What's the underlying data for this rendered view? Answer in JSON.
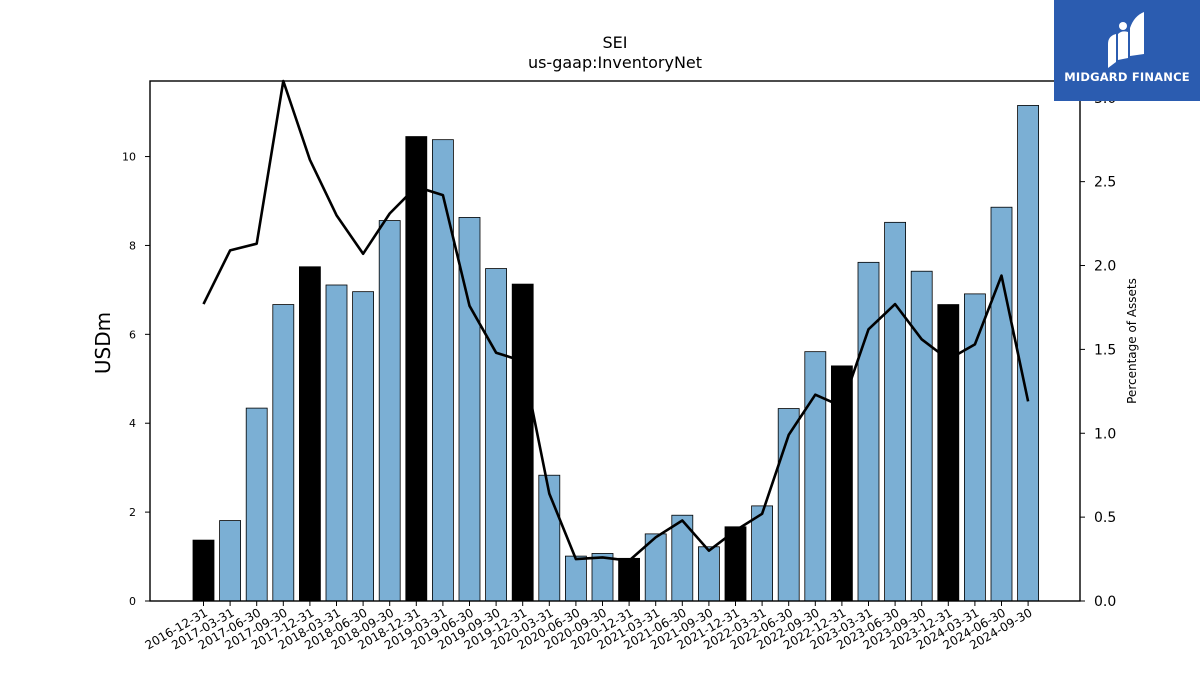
{
  "chart_data": {
    "type": "bar",
    "title": "SEI",
    "subtitle": "us-gaap:InventoryNet",
    "ylabel": "USDm",
    "y2label": "Percentage of Assets",
    "ylim": [
      0,
      11.7
    ],
    "y2lim": [
      0,
      3.1
    ],
    "yticks": [
      "0",
      "2",
      "4",
      "6",
      "8",
      "10"
    ],
    "y2ticks": [
      "0.0",
      "0.5",
      "1.0",
      "1.5",
      "2.0",
      "2.5",
      "3.0"
    ],
    "categories": [
      "2016-12-31",
      "2017-03-31",
      "2017-06-30",
      "2017-09-30",
      "2017-12-31",
      "2018-03-31",
      "2018-06-30",
      "2018-09-30",
      "2018-12-31",
      "2019-03-31",
      "2019-06-30",
      "2019-09-30",
      "2019-12-31",
      "2020-03-31",
      "2020-06-30",
      "2020-09-30",
      "2020-12-31",
      "2021-03-31",
      "2021-06-30",
      "2021-09-30",
      "2021-12-31",
      "2022-03-31",
      "2022-06-30",
      "2022-09-30",
      "2022-12-31",
      "2023-03-31",
      "2023-06-30",
      "2023-09-30",
      "2023-12-31",
      "2024-03-31",
      "2024-06-30",
      "2024-09-30"
    ],
    "series": [
      {
        "kind": "bar",
        "axis": "left",
        "values": [
          1.37,
          1.81,
          4.34,
          6.67,
          7.52,
          7.11,
          6.96,
          8.56,
          10.45,
          10.38,
          8.63,
          7.48,
          7.13,
          2.83,
          1.01,
          1.07,
          0.96,
          1.51,
          1.93,
          1.22,
          1.67,
          2.14,
          4.33,
          5.61,
          5.29,
          7.62,
          8.52,
          7.42,
          6.67,
          6.91,
          8.86,
          11.15
        ]
      },
      {
        "kind": "line",
        "axis": "right",
        "values": [
          1.77,
          2.09,
          2.13,
          3.1,
          2.63,
          2.3,
          2.07,
          2.31,
          2.47,
          2.42,
          1.76,
          1.48,
          1.43,
          0.64,
          0.25,
          0.26,
          0.24,
          0.38,
          0.48,
          0.3,
          0.42,
          0.52,
          0.99,
          1.23,
          1.16,
          1.62,
          1.77,
          1.56,
          1.44,
          1.53,
          1.94,
          1.19
        ]
      }
    ],
    "highlight_quarter": "12-31",
    "colors": {
      "bar": "#7bafd4",
      "bar_highlight": "#000000",
      "line": "#000000",
      "edge": "#000000"
    }
  },
  "logo": {
    "text": "MIDGARD FINANCE",
    "color": "#2b5cb0"
  }
}
